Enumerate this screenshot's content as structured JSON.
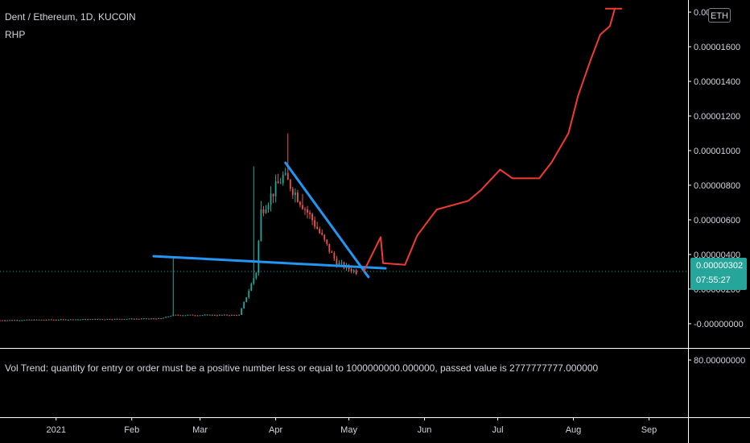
{
  "header": {
    "title": "Dent / Ethereum, 1D, KUCOIN",
    "subtitle": "RHP",
    "currency_badge": "ETH"
  },
  "indicator": {
    "message": "Vol Trend: quantity for entry or order must be a positive number less or equal to 1000000000.000000, passed value is 2777777777.000000",
    "pane_label": "80.00000000"
  },
  "last_price": {
    "value": "0.00000302",
    "countdown": "07:55:27"
  },
  "colors": {
    "background": "#000000",
    "up": "#26a69a",
    "down": "#ef5350",
    "trendline": "#2196f3",
    "projection": "#f23b30",
    "price_line": "#26a69a",
    "axis_text": "#d1d4dc"
  },
  "chart_data": {
    "type": "candlestick",
    "y_unit": "ETH",
    "y_ticks": [
      "0.00001800",
      "0.00001600",
      "0.00001400",
      "0.00001200",
      "0.00001000",
      "0.00000800",
      "0.00000600",
      "0.00000400",
      "0.00000200",
      "-0.00000000"
    ],
    "y_tick_values": [
      1.8e-05,
      1.6e-05,
      1.4e-05,
      1.2e-05,
      1e-05,
      8e-06,
      6e-06,
      4e-06,
      2e-06,
      0
    ],
    "y_tick_top_display": "0.0000",
    "x_ticks": [
      "2021",
      "Feb",
      "Mar",
      "Apr",
      "May",
      "Jun",
      "Jul",
      "Aug",
      "Sep"
    ],
    "x_tick_days": [
      0,
      31,
      59,
      90,
      120,
      151,
      181,
      212,
      243
    ],
    "ylim": [
      -1.4e-06,
      1.87e-05
    ],
    "xlim_days": [
      -23,
      259
    ],
    "current_price_line": 3.02e-06,
    "price_segments": [
      {
        "from_day": -23,
        "to_day": 43,
        "from_price": 2e-07,
        "to_price": 3e-07
      },
      {
        "from_day": 43,
        "to_day": 48,
        "from_price": 3e-07,
        "to_price": 5e-07
      },
      {
        "from_day": 48,
        "to_day": 75,
        "from_price": 5e-07,
        "to_price": 5e-07
      },
      {
        "from_day": 75,
        "to_day": 82,
        "from_price": 5e-07,
        "to_price": 3e-06
      },
      {
        "from_day": 82,
        "to_day": 84,
        "from_price": 3e-06,
        "to_price": 6.5e-06
      },
      {
        "from_day": 84,
        "to_day": 93,
        "from_price": 6.5e-06,
        "to_price": 8.5e-06
      },
      {
        "from_day": 93,
        "to_day": 96,
        "from_price": 8.5e-06,
        "to_price": 8e-06
      },
      {
        "from_day": 96,
        "to_day": 105,
        "from_price": 8e-06,
        "to_price": 6e-06
      },
      {
        "from_day": 105,
        "to_day": 115,
        "from_price": 6e-06,
        "to_price": 3.5e-06
      },
      {
        "from_day": 115,
        "to_day": 123,
        "from_price": 3.5e-06,
        "to_price": 3e-06
      }
    ],
    "price_spikes": [
      {
        "day": 48,
        "high": 3.9e-06
      },
      {
        "day": 81,
        "high": 9.1e-06
      },
      {
        "day": 84,
        "high": 7.1e-06
      },
      {
        "day": 95,
        "high": 1.1e-05
      },
      {
        "day": 101,
        "high": 7.5e-06
      }
    ],
    "trendlines": [
      {
        "name": "support",
        "points": [
          {
            "day": 40,
            "price": 3.9e-06
          },
          {
            "day": 135,
            "price": 3.2e-06
          }
        ]
      },
      {
        "name": "resistance",
        "points": [
          {
            "day": 94,
            "price": 9.3e-06
          },
          {
            "day": 128,
            "price": 2.7e-06
          }
        ]
      }
    ],
    "projection": [
      {
        "day": 126,
        "price": 3e-06
      },
      {
        "day": 133,
        "price": 5e-06
      },
      {
        "day": 134,
        "price": 3.5e-06
      },
      {
        "day": 143,
        "price": 3.4e-06
      },
      {
        "day": 148,
        "price": 5.1e-06
      },
      {
        "day": 156,
        "price": 6.6e-06
      },
      {
        "day": 169,
        "price": 7.1e-06
      },
      {
        "day": 174,
        "price": 7.7e-06
      },
      {
        "day": 182,
        "price": 8.9e-06
      },
      {
        "day": 187,
        "price": 8.4e-06
      },
      {
        "day": 198,
        "price": 8.4e-06
      },
      {
        "day": 203,
        "price": 9.3e-06
      },
      {
        "day": 210,
        "price": 1.1e-05
      },
      {
        "day": 214,
        "price": 1.32e-05
      },
      {
        "day": 219,
        "price": 1.52e-05
      },
      {
        "day": 223,
        "price": 1.67e-05
      },
      {
        "day": 227,
        "price": 1.72e-05
      },
      {
        "day": 229,
        "price": 1.82e-05
      }
    ],
    "projection_arrowhead": {
      "left_day": 225,
      "right_day": 232,
      "price": 1.82e-05
    }
  }
}
